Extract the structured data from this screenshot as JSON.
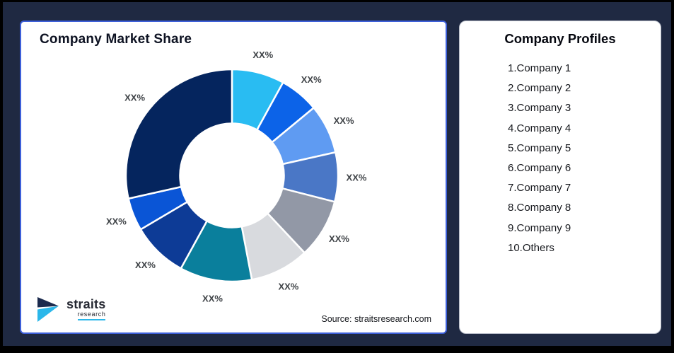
{
  "frame": {
    "background": "#1F2942",
    "border_color": "#000000"
  },
  "chart_panel": {
    "title": "Company Market Share",
    "source": "Source: straitsresearch.com",
    "border_color": "#3D5FD9",
    "logo": {
      "name": "straits",
      "sub": "research",
      "accent": "#2BB7EA",
      "dark": "#1B2A4E"
    }
  },
  "profiles_panel": {
    "title": "Company Profiles",
    "items": [
      "1.Company 1",
      "2.Company 2",
      "3.Company 3",
      "4.Company 4",
      "5.Company 5",
      "6.Company 6",
      "7.Company 7",
      "8.Company 8",
      "9.Company 9",
      "10.Others"
    ]
  },
  "chart_data": {
    "type": "pie",
    "subtype": "donut",
    "title": "Company Market Share",
    "unit": "percent",
    "start_angle": "top",
    "direction": "clockwise",
    "inner_radius_ratio": 0.49,
    "legend": "none",
    "segments": [
      {
        "label": "XX%",
        "value": 8,
        "color": "#29BCF2"
      },
      {
        "label": "XX%",
        "value": 6,
        "color": "#0C63E8"
      },
      {
        "label": "XX%",
        "value": 7.5,
        "color": "#5F9BF2"
      },
      {
        "label": "XX%",
        "value": 7.5,
        "color": "#4A77C6"
      },
      {
        "label": "XX%",
        "value": 9,
        "color": "#9298A6"
      },
      {
        "label": "XX%",
        "value": 9,
        "color": "#D8DADE"
      },
      {
        "label": "XX%",
        "value": 11,
        "color": "#0A7F9C"
      },
      {
        "label": "XX%",
        "value": 8.5,
        "color": "#0D3B96"
      },
      {
        "label": "XX%",
        "value": 5,
        "color": "#0A55D6"
      },
      {
        "label": "XX%",
        "value": 28.5,
        "color": "#05255E"
      }
    ]
  }
}
